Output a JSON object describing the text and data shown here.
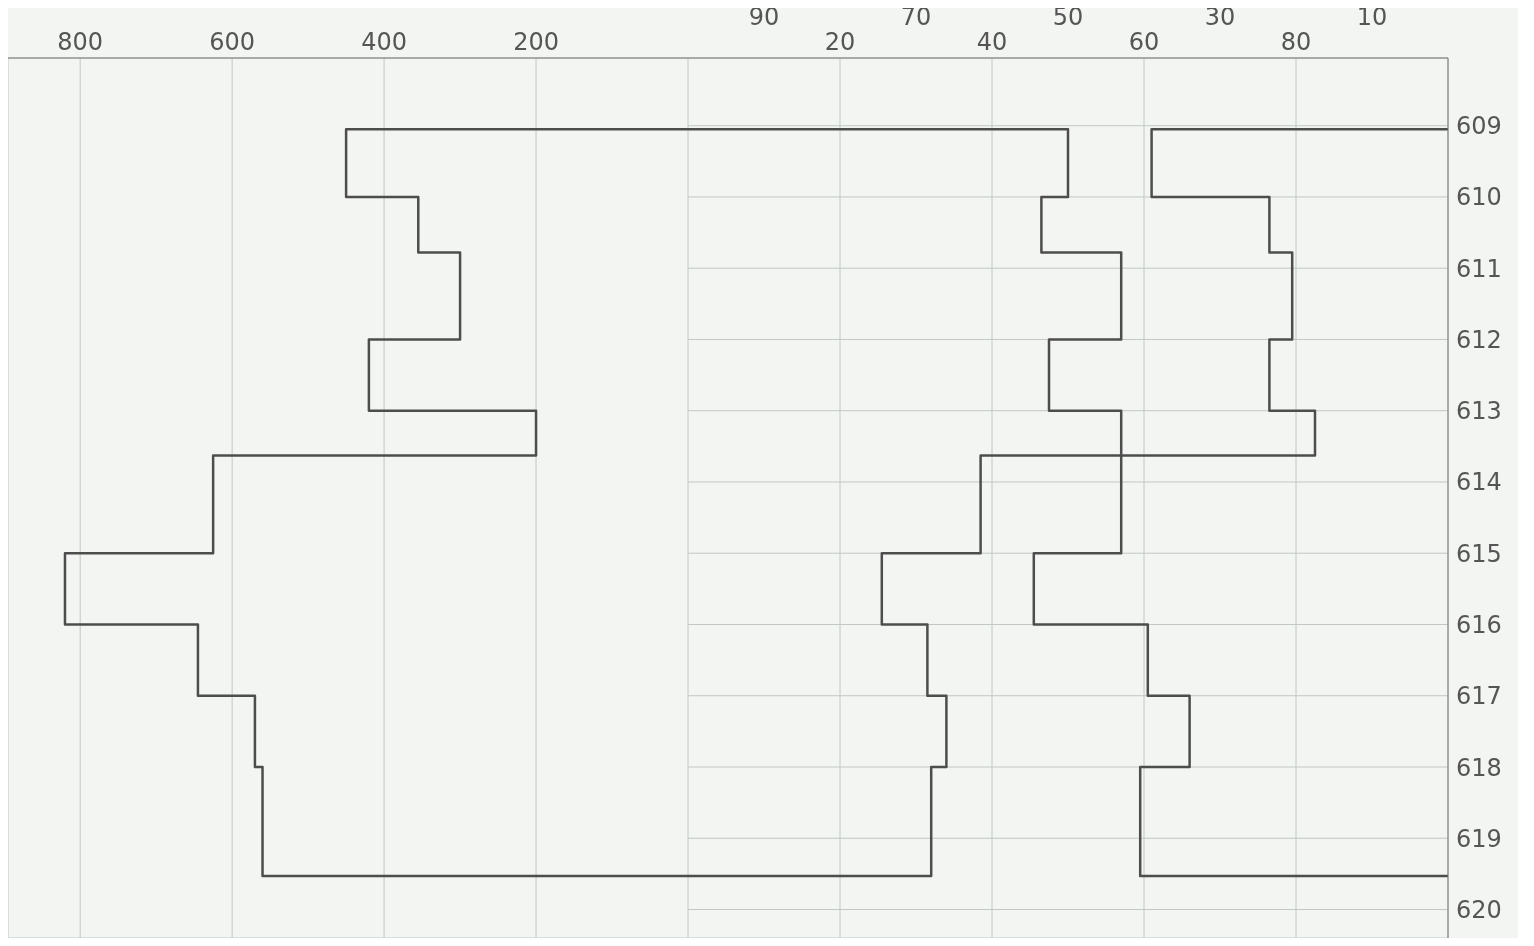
{
  "chart_data": [
    {
      "type": "line",
      "xlim": [
        895,
        0
      ],
      "xticks": [
        800,
        600,
        400,
        200
      ],
      "ylim": [
        620.4,
        608.05
      ],
      "tick_labels": "x",
      "grid": true,
      "series": [
        {
          "color": "#4d4d4d",
          "x": [
            0,
            450,
            450,
            355,
            355,
            300,
            300,
            420,
            420,
            200,
            200,
            625,
            625,
            820,
            820,
            645,
            645,
            570,
            570,
            560,
            560,
            0
          ],
          "values": [
            609.05,
            609.05,
            610,
            610,
            610.78,
            610.78,
            612,
            612,
            613,
            613,
            613.63,
            613.63,
            615,
            615,
            616,
            616,
            617,
            617,
            618,
            618,
            619.53,
            619.53
          ]
        }
      ]
    },
    {
      "type": "line",
      "xlim": [
        0,
        100
      ],
      "xticks": [
        20,
        40,
        60,
        80
      ],
      "x2lim": [
        100,
        0
      ],
      "x2ticks": [
        90,
        70,
        50,
        30,
        10
      ],
      "ylim": [
        620.4,
        608.05
      ],
      "yticks": [
        609,
        610,
        611,
        612,
        613,
        614,
        615,
        616,
        617,
        618,
        619,
        620
      ],
      "grid": true,
      "series": [
        {
          "color": "#4d4d4d",
          "x": [
            0,
            50,
            50,
            46.5,
            46.5,
            57,
            57,
            47.5,
            47.5,
            57,
            57,
            38.5,
            38.5,
            25.5,
            25.5,
            31.5,
            31.5,
            34,
            34,
            32,
            32,
            0
          ],
          "values": [
            609.05,
            609.05,
            610,
            610,
            610.78,
            610.78,
            612,
            612,
            613,
            613,
            613.63,
            613.63,
            615,
            615,
            616,
            616,
            617,
            617,
            618,
            618,
            619.53,
            619.53
          ]
        },
        {
          "color": "#4d4d4d",
          "axis": "x2",
          "x": [
            0,
            39,
            39,
            23.5,
            23.5,
            20.5,
            20.5,
            23.5,
            23.5,
            17.5,
            17.5,
            43,
            43,
            54.5,
            54.5,
            39.5,
            39.5,
            34,
            34,
            40.5,
            40.5,
            0
          ],
          "values": [
            609.05,
            609.05,
            610,
            610,
            610.78,
            610.78,
            612,
            612,
            613,
            613,
            613.63,
            613.63,
            615,
            615,
            616,
            616,
            617,
            617,
            618,
            618,
            619.53,
            619.53
          ]
        }
      ]
    }
  ]
}
